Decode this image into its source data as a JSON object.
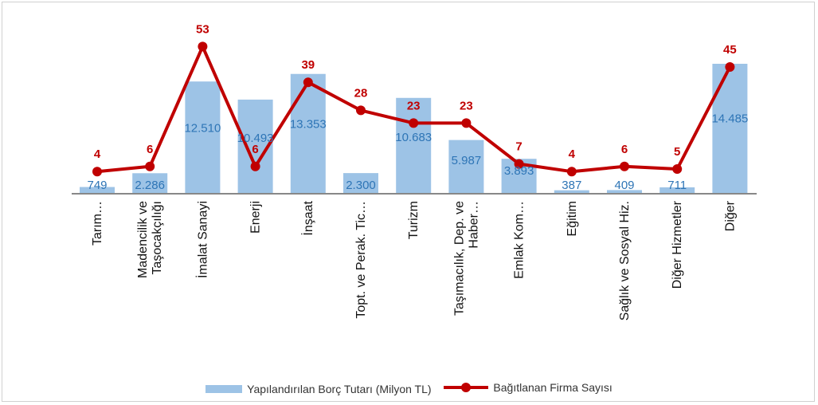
{
  "chart_data": {
    "type": "bar+line",
    "title": "",
    "categories": [
      "Tarım…",
      "Madencilik ve Taşocakçılığı",
      "İmalat Sanayi",
      "Enerji",
      "İnşaat",
      "Topt. ve Perak. Tic…",
      "Turizm",
      "Taşımacılık, Dep. ve Haber…",
      "Emlak Kom…",
      "Eğitim",
      "Sağlık ve Sosyal Hiz.",
      "Diğer Hizmetler",
      "Diğer"
    ],
    "category_lines": [
      [
        "Tarım…"
      ],
      [
        "Madencilik ve",
        "Taşocakçılığı"
      ],
      [
        "İmalat Sanayi"
      ],
      [
        "Enerji"
      ],
      [
        "İnşaat"
      ],
      [
        "Topt. ve Perak. Tic…"
      ],
      [
        "Turizm"
      ],
      [
        "Taşımacılık, Dep. ve",
        "Haber…"
      ],
      [
        "Emlak Kom…"
      ],
      [
        "Eğitim"
      ],
      [
        "Sağlık ve Sosyal Hiz."
      ],
      [
        "Diğer Hizmetler"
      ],
      [
        "Diğer"
      ]
    ],
    "series": [
      {
        "name": "Yapılandırılan Borç Tutarı (Milyon TL)",
        "type": "bar",
        "color": "#9dc3e6",
        "label_color": "#2e75b6",
        "values": [
          749,
          2286,
          12510,
          10493,
          13353,
          2300,
          10683,
          5987,
          3893,
          387,
          409,
          711,
          14485
        ],
        "labels": [
          "749",
          "2.286",
          "12.510",
          "10.493",
          "13.353",
          "2.300",
          "10.683",
          "5.987",
          "3.893",
          "387",
          "409",
          "711",
          "14.485"
        ]
      },
      {
        "name": "Bağıtlanan Firma Sayısı",
        "type": "line",
        "color": "#c00000",
        "values": [
          4,
          6,
          53,
          6,
          39,
          28,
          23,
          23,
          7,
          4,
          6,
          5,
          45
        ],
        "labels": [
          "4",
          "6",
          "53",
          "6",
          "39",
          "28",
          "23",
          "23",
          "7",
          "4",
          "6",
          "5",
          "45"
        ]
      }
    ],
    "legend_position": "bottom",
    "grid": false
  }
}
